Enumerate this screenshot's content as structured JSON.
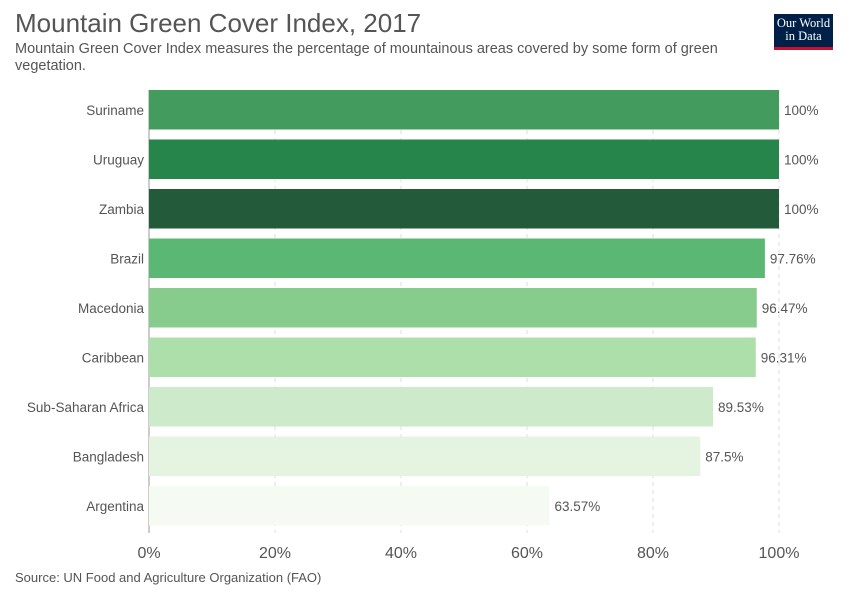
{
  "header": {
    "title": "Mountain Green Cover Index, 2017",
    "subtitle": "Mountain Green Cover Index measures the percentage of mountainous areas covered by some form of green vegetation."
  },
  "logo": {
    "line1": "Our World",
    "line2": "in Data",
    "bg_color": "#002147",
    "accent_color": "#c8102e"
  },
  "source": "Source: UN Food and Agriculture Organization (FAO)",
  "chart_data": {
    "type": "bar",
    "orientation": "horizontal",
    "categories": [
      "Suriname",
      "Uruguay",
      "Zambia",
      "Brazil",
      "Macedonia",
      "Caribbean",
      "Sub-Saharan Africa",
      "Bangladesh",
      "Argentina"
    ],
    "values": [
      100,
      100,
      100,
      97.76,
      96.47,
      96.31,
      89.53,
      87.5,
      63.57
    ],
    "value_labels": [
      "100%",
      "100%",
      "100%",
      "97.76%",
      "96.47%",
      "96.31%",
      "89.53%",
      "87.5%",
      "63.57%"
    ],
    "colors": [
      "#439c5e",
      "#25854a",
      "#235b3a",
      "#5bb874",
      "#88cc8d",
      "#addfab",
      "#cdebca",
      "#e4f4e0",
      "#f5fbf3"
    ],
    "xlim": [
      0,
      100
    ],
    "ticks": [
      0,
      20,
      40,
      60,
      80,
      100
    ],
    "tick_labels": [
      "0%",
      "20%",
      "40%",
      "60%",
      "80%",
      "100%"
    ],
    "grid": "vertical-dashed",
    "grid_color": "#dddddd"
  }
}
